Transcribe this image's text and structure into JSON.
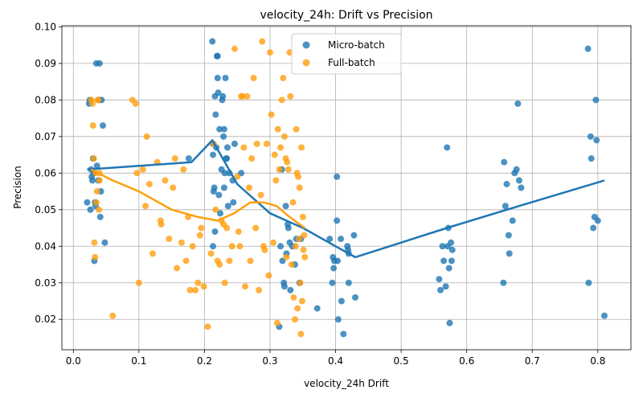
{
  "chart_data": {
    "type": "scatter",
    "title": "velocity_24h: Drift vs Precision",
    "xlabel": "velocity_24h Drift",
    "ylabel": "Precision",
    "xlim": [
      -0.0175,
      0.8505
    ],
    "ylim": [
      0.0117,
      0.1003
    ],
    "x_ticks": [
      0.0,
      0.1,
      0.2,
      0.3,
      0.4,
      0.5,
      0.6,
      0.7,
      0.8
    ],
    "x_tick_labels": [
      "0.0",
      "0.1",
      "0.2",
      "0.3",
      "0.4",
      "0.5",
      "0.6",
      "0.7",
      "0.8"
    ],
    "y_ticks": [
      0.02,
      0.03,
      0.04,
      0.05,
      0.06,
      0.07,
      0.08,
      0.09,
      0.1
    ],
    "y_tick_labels": [
      "0.02",
      "0.03",
      "0.04",
      "0.05",
      "0.06",
      "0.07",
      "0.08",
      "0.09",
      "0.10"
    ],
    "grid": true,
    "legend_position": "top-center",
    "series": [
      {
        "name": "Micro-batch",
        "color": "#1f77b4",
        "points": [
          [
            0.021,
            0.052
          ],
          [
            0.024,
            0.079
          ],
          [
            0.025,
            0.08
          ],
          [
            0.026,
            0.05
          ],
          [
            0.027,
            0.061
          ],
          [
            0.028,
            0.059
          ],
          [
            0.029,
            0.058
          ],
          [
            0.03,
            0.064
          ],
          [
            0.031,
            0.06
          ],
          [
            0.032,
            0.036
          ],
          [
            0.033,
            0.052
          ],
          [
            0.034,
            0.051
          ],
          [
            0.035,
            0.09
          ],
          [
            0.036,
            0.062
          ],
          [
            0.038,
            0.058
          ],
          [
            0.039,
            0.08
          ],
          [
            0.04,
            0.09
          ],
          [
            0.041,
            0.048
          ],
          [
            0.042,
            0.055
          ],
          [
            0.043,
            0.08
          ],
          [
            0.045,
            0.073
          ],
          [
            0.048,
            0.041
          ],
          [
            0.176,
            0.064
          ],
          [
            0.212,
            0.096
          ],
          [
            0.213,
            0.068
          ],
          [
            0.213,
            0.065
          ],
          [
            0.214,
            0.055
          ],
          [
            0.215,
            0.056
          ],
          [
            0.216,
            0.081
          ],
          [
            0.216,
            0.044
          ],
          [
            0.217,
            0.076
          ],
          [
            0.218,
            0.067
          ],
          [
            0.219,
            0.092
          ],
          [
            0.22,
            0.092
          ],
          [
            0.22,
            0.086
          ],
          [
            0.221,
            0.082
          ],
          [
            0.222,
            0.054
          ],
          [
            0.223,
            0.072
          ],
          [
            0.224,
            0.049
          ],
          [
            0.226,
            0.061
          ],
          [
            0.227,
            0.08
          ],
          [
            0.228,
            0.081
          ],
          [
            0.229,
            0.07
          ],
          [
            0.23,
            0.072
          ],
          [
            0.23,
            0.056
          ],
          [
            0.231,
            0.06
          ],
          [
            0.232,
            0.086
          ],
          [
            0.233,
            0.064
          ],
          [
            0.234,
            0.064
          ],
          [
            0.235,
            0.067
          ],
          [
            0.236,
            0.051
          ],
          [
            0.238,
            0.06
          ],
          [
            0.243,
            0.058
          ],
          [
            0.244,
            0.052
          ],
          [
            0.246,
            0.068
          ],
          [
            0.256,
            0.06
          ],
          [
            0.213,
            0.04
          ],
          [
            0.314,
            0.018
          ],
          [
            0.316,
            0.04
          ],
          [
            0.318,
            0.061
          ],
          [
            0.319,
            0.036
          ],
          [
            0.321,
            0.03
          ],
          [
            0.322,
            0.029
          ],
          [
            0.324,
            0.051
          ],
          [
            0.325,
            0.038
          ],
          [
            0.327,
            0.046
          ],
          [
            0.328,
            0.045
          ],
          [
            0.33,
            0.041
          ],
          [
            0.331,
            0.028
          ],
          [
            0.334,
            0.04
          ],
          [
            0.338,
            0.035
          ],
          [
            0.34,
            0.042
          ],
          [
            0.345,
            0.03
          ],
          [
            0.347,
            0.042
          ],
          [
            0.372,
            0.023
          ],
          [
            0.391,
            0.042
          ],
          [
            0.395,
            0.03
          ],
          [
            0.396,
            0.037
          ],
          [
            0.397,
            0.034
          ],
          [
            0.398,
            0.036
          ],
          [
            0.402,
            0.059
          ],
          [
            0.402,
            0.047
          ],
          [
            0.403,
            0.036
          ],
          [
            0.404,
            0.02
          ],
          [
            0.408,
            0.042
          ],
          [
            0.409,
            0.025
          ],
          [
            0.412,
            0.016
          ],
          [
            0.418,
            0.04
          ],
          [
            0.419,
            0.039
          ],
          [
            0.42,
            0.038
          ],
          [
            0.42,
            0.03
          ],
          [
            0.428,
            0.043
          ],
          [
            0.43,
            0.026
          ],
          [
            0.558,
            0.031
          ],
          [
            0.56,
            0.028
          ],
          [
            0.563,
            0.04
          ],
          [
            0.565,
            0.036
          ],
          [
            0.568,
            0.029
          ],
          [
            0.57,
            0.067
          ],
          [
            0.571,
            0.04
          ],
          [
            0.572,
            0.045
          ],
          [
            0.573,
            0.034
          ],
          [
            0.574,
            0.019
          ],
          [
            0.576,
            0.041
          ],
          [
            0.577,
            0.036
          ],
          [
            0.578,
            0.039
          ],
          [
            0.656,
            0.03
          ],
          [
            0.657,
            0.063
          ],
          [
            0.659,
            0.051
          ],
          [
            0.661,
            0.057
          ],
          [
            0.664,
            0.043
          ],
          [
            0.665,
            0.038
          ],
          [
            0.67,
            0.047
          ],
          [
            0.673,
            0.06
          ],
          [
            0.676,
            0.061
          ],
          [
            0.678,
            0.079
          ],
          [
            0.68,
            0.058
          ],
          [
            0.683,
            0.056
          ],
          [
            0.785,
            0.094
          ],
          [
            0.786,
            0.03
          ],
          [
            0.789,
            0.07
          ],
          [
            0.79,
            0.064
          ],
          [
            0.793,
            0.045
          ],
          [
            0.795,
            0.048
          ],
          [
            0.797,
            0.08
          ],
          [
            0.798,
            0.069
          ],
          [
            0.8,
            0.047
          ],
          [
            0.81,
            0.021
          ]
        ],
        "trend": [
          [
            0.021,
            0.061
          ],
          [
            0.18,
            0.063
          ],
          [
            0.212,
            0.069
          ],
          [
            0.25,
            0.057
          ],
          [
            0.3,
            0.049
          ],
          [
            0.35,
            0.045
          ],
          [
            0.4,
            0.04
          ],
          [
            0.43,
            0.037
          ],
          [
            0.57,
            0.045
          ],
          [
            0.68,
            0.051
          ],
          [
            0.81,
            0.058
          ]
        ]
      },
      {
        "name": "Full-batch",
        "color": "#ff9f0f",
        "points": [
          [
            0.027,
            0.08
          ],
          [
            0.029,
            0.079
          ],
          [
            0.03,
            0.073
          ],
          [
            0.031,
            0.064
          ],
          [
            0.032,
            0.041
          ],
          [
            0.033,
            0.037
          ],
          [
            0.034,
            0.06
          ],
          [
            0.035,
            0.052
          ],
          [
            0.036,
            0.055
          ],
          [
            0.037,
            0.08
          ],
          [
            0.038,
            0.08
          ],
          [
            0.039,
            0.05
          ],
          [
            0.04,
            0.058
          ],
          [
            0.04,
            0.06
          ],
          [
            0.06,
            0.021
          ],
          [
            0.09,
            0.08
          ],
          [
            0.095,
            0.079
          ],
          [
            0.097,
            0.06
          ],
          [
            0.1,
            0.03
          ],
          [
            0.106,
            0.061
          ],
          [
            0.11,
            0.051
          ],
          [
            0.112,
            0.07
          ],
          [
            0.116,
            0.057
          ],
          [
            0.121,
            0.038
          ],
          [
            0.128,
            0.063
          ],
          [
            0.133,
            0.047
          ],
          [
            0.134,
            0.046
          ],
          [
            0.14,
            0.058
          ],
          [
            0.146,
            0.042
          ],
          [
            0.152,
            0.056
          ],
          [
            0.155,
            0.064
          ],
          [
            0.158,
            0.034
          ],
          [
            0.165,
            0.041
          ],
          [
            0.168,
            0.061
          ],
          [
            0.172,
            0.036
          ],
          [
            0.175,
            0.048
          ],
          [
            0.178,
            0.028
          ],
          [
            0.182,
            0.04
          ],
          [
            0.186,
            0.028
          ],
          [
            0.19,
            0.03
          ],
          [
            0.193,
            0.043
          ],
          [
            0.195,
            0.045
          ],
          [
            0.199,
            0.029
          ],
          [
            0.205,
            0.018
          ],
          [
            0.21,
            0.038
          ],
          [
            0.214,
            0.068
          ],
          [
            0.217,
            0.05
          ],
          [
            0.22,
            0.036
          ],
          [
            0.223,
            0.035
          ],
          [
            0.226,
            0.047
          ],
          [
            0.229,
            0.046
          ],
          [
            0.231,
            0.03
          ],
          [
            0.234,
            0.045
          ],
          [
            0.238,
            0.036
          ],
          [
            0.242,
            0.04
          ],
          [
            0.246,
            0.094
          ],
          [
            0.25,
            0.059
          ],
          [
            0.252,
            0.044
          ],
          [
            0.254,
            0.04
          ],
          [
            0.256,
            0.081
          ],
          [
            0.258,
            0.081
          ],
          [
            0.26,
            0.067
          ],
          [
            0.262,
            0.029
          ],
          [
            0.265,
            0.081
          ],
          [
            0.268,
            0.056
          ],
          [
            0.27,
            0.036
          ],
          [
            0.272,
            0.064
          ],
          [
            0.275,
            0.086
          ],
          [
            0.278,
            0.045
          ],
          [
            0.28,
            0.068
          ],
          [
            0.283,
            0.028
          ],
          [
            0.286,
            0.054
          ],
          [
            0.288,
            0.096
          ],
          [
            0.29,
            0.04
          ],
          [
            0.292,
            0.039
          ],
          [
            0.295,
            0.068
          ],
          [
            0.298,
            0.032
          ],
          [
            0.3,
            0.093
          ],
          [
            0.302,
            0.076
          ],
          [
            0.305,
            0.041
          ],
          [
            0.307,
            0.065
          ],
          [
            0.309,
            0.058
          ],
          [
            0.311,
            0.019
          ],
          [
            0.312,
            0.072
          ],
          [
            0.314,
            0.061
          ],
          [
            0.316,
            0.067
          ],
          [
            0.318,
            0.08
          ],
          [
            0.32,
            0.086
          ],
          [
            0.322,
            0.07
          ],
          [
            0.324,
            0.064
          ],
          [
            0.325,
            0.037
          ],
          [
            0.326,
            0.063
          ],
          [
            0.328,
            0.061
          ],
          [
            0.33,
            0.093
          ],
          [
            0.331,
            0.081
          ],
          [
            0.333,
            0.035
          ],
          [
            0.335,
            0.052
          ],
          [
            0.336,
            0.026
          ],
          [
            0.338,
            0.02
          ],
          [
            0.339,
            0.04
          ],
          [
            0.34,
            0.072
          ],
          [
            0.341,
            0.06
          ],
          [
            0.342,
            0.023
          ],
          [
            0.343,
            0.059
          ],
          [
            0.344,
            0.042
          ],
          [
            0.345,
            0.056
          ],
          [
            0.346,
            0.03
          ],
          [
            0.347,
            0.016
          ],
          [
            0.348,
            0.067
          ],
          [
            0.349,
            0.025
          ],
          [
            0.35,
            0.048
          ],
          [
            0.351,
            0.039
          ],
          [
            0.352,
            0.043
          ],
          [
            0.353,
            0.037
          ]
        ],
        "trend": [
          [
            0.027,
            0.061
          ],
          [
            0.06,
            0.058
          ],
          [
            0.1,
            0.055
          ],
          [
            0.15,
            0.05
          ],
          [
            0.19,
            0.048
          ],
          [
            0.22,
            0.047
          ],
          [
            0.245,
            0.049
          ],
          [
            0.27,
            0.052
          ],
          [
            0.29,
            0.052
          ],
          [
            0.31,
            0.051
          ],
          [
            0.33,
            0.048
          ],
          [
            0.345,
            0.046
          ],
          [
            0.353,
            0.045
          ]
        ]
      }
    ]
  }
}
